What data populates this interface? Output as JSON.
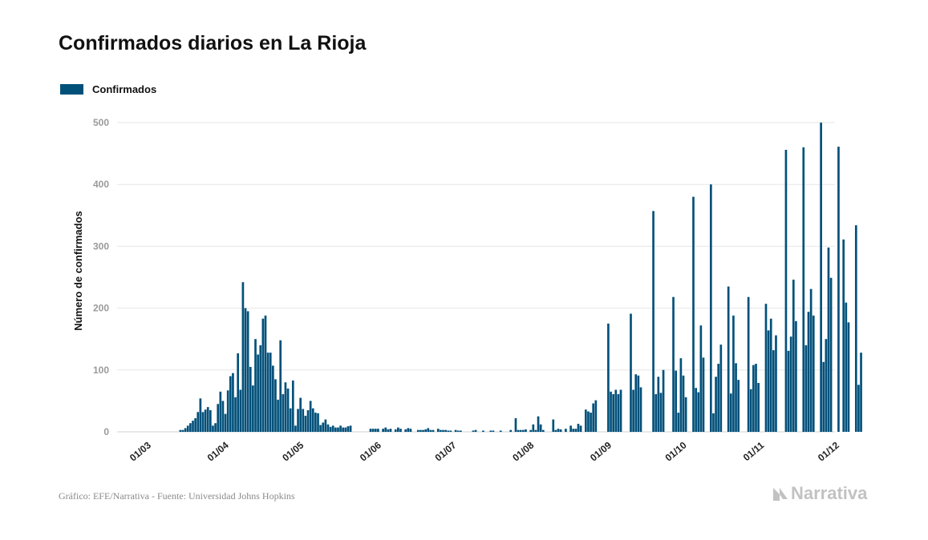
{
  "title": "Confirmados diarios en La Rioja",
  "footer": "Gráfico: EFE/Narrativa - Fuente: Universidad Johns Hopkins",
  "brand": "Narrativa",
  "brand_icon": "narrativa-logo-icon",
  "colors": {
    "bar": "#01507a",
    "grid": "#e6e6e6",
    "brand": "#c2c2c2"
  },
  "chart_data": {
    "type": "bar",
    "ylabel": "Número de confirmados",
    "ylim": [
      0,
      500
    ],
    "yticks": [
      0,
      100,
      200,
      300,
      400,
      500
    ],
    "xlim": [
      "01/03",
      "01/12"
    ],
    "xticks": [
      "01/03",
      "01/04",
      "01/05",
      "01/06",
      "01/07",
      "01/08",
      "01/09",
      "01/10",
      "01/11",
      "01/12"
    ],
    "grid": true,
    "legend_position": "top-left",
    "series": [
      {
        "name": "Confirmados",
        "start_date": "2020-03-01",
        "values": [
          0,
          0,
          0,
          0,
          0,
          0,
          0,
          0,
          0,
          0,
          0,
          0,
          0,
          3,
          3,
          6,
          10,
          14,
          18,
          22,
          32,
          54,
          32,
          36,
          40,
          35,
          10,
          14,
          45,
          65,
          50,
          29,
          67,
          90,
          95,
          56,
          127,
          68,
          242,
          200,
          195,
          105,
          75,
          150,
          125,
          140,
          183,
          188,
          128,
          128,
          107,
          85,
          52,
          148,
          61,
          80,
          70,
          38,
          83,
          10,
          37,
          55,
          37,
          26,
          35,
          50,
          38,
          31,
          30,
          11,
          15,
          20,
          12,
          8,
          10,
          7,
          7,
          10,
          7,
          7,
          9,
          10,
          0,
          0,
          0,
          0,
          0,
          0,
          0,
          5,
          5,
          5,
          5,
          0,
          5,
          7,
          4,
          5,
          0,
          4,
          7,
          5,
          0,
          4,
          6,
          5,
          0,
          0,
          3,
          3,
          3,
          4,
          6,
          3,
          3,
          0,
          5,
          3,
          3,
          3,
          2,
          2,
          0,
          3,
          2,
          2,
          0,
          0,
          0,
          0,
          2,
          3,
          0,
          0,
          2,
          0,
          0,
          2,
          2,
          0,
          0,
          2,
          0,
          0,
          0,
          3,
          0,
          22,
          3,
          3,
          3,
          4,
          0,
          3,
          12,
          3,
          25,
          12,
          3,
          0,
          0,
          0,
          20,
          3,
          5,
          4,
          0,
          5,
          0,
          10,
          5,
          5,
          13,
          10,
          0,
          36,
          33,
          31,
          46,
          51,
          0,
          0,
          0,
          0,
          175,
          65,
          61,
          68,
          61,
          68,
          0,
          0,
          0,
          191,
          68,
          93,
          91,
          72,
          0,
          0,
          0,
          0,
          357,
          61,
          89,
          63,
          100,
          0,
          0,
          0,
          218,
          99,
          31,
          119,
          91,
          56,
          0,
          0,
          380,
          71,
          64,
          172,
          120,
          0,
          0,
          400,
          30,
          89,
          110,
          141,
          0,
          0,
          235,
          62,
          188,
          111,
          84,
          0,
          0,
          0,
          218,
          69,
          108,
          110,
          79,
          0,
          0,
          207,
          164,
          183,
          132,
          156,
          0,
          0,
          0,
          456,
          131,
          154,
          246,
          179,
          0,
          0,
          460,
          140,
          194,
          231,
          188,
          0,
          0,
          500,
          113,
          150,
          298,
          249,
          0,
          0,
          461,
          0,
          311,
          209,
          177,
          0,
          0,
          334,
          76,
          128,
          0,
          0,
          0,
          0,
          0,
          0,
          0,
          0,
          0,
          0,
          0,
          0,
          0,
          0,
          0,
          0,
          0,
          0,
          0,
          0,
          0,
          0,
          0
        ]
      }
    ]
  }
}
